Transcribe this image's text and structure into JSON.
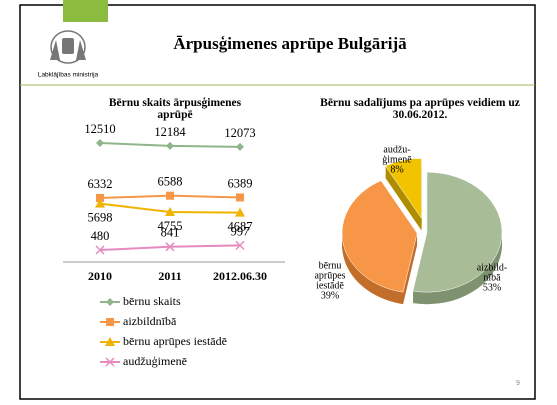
{
  "title": "Ārpusģimenes aprūpe Bulgārijā",
  "logo_text": "Labklājības ministrija",
  "page_number": "9",
  "chart_data": [
    {
      "type": "line",
      "title": "Bērnu skaits ārpusģimenes aprūpē",
      "categories": [
        "2010",
        "2011",
        "2012.06.30"
      ],
      "series": [
        {
          "name": "bērnu skaits",
          "color": "#8fb58a",
          "marker": "diamond",
          "values": [
            12510,
            12184,
            12073
          ]
        },
        {
          "name": "aizbildnībā",
          "color": "#f79646",
          "marker": "square",
          "values": [
            6332,
            6588,
            6389
          ]
        },
        {
          "name": "bērnu aprūpes iestādē",
          "color": "#f0b400",
          "marker": "triangle",
          "values": [
            5698,
            4755,
            4687
          ]
        },
        {
          "name": "audžuģimenē",
          "color": "#e58bbf",
          "marker": "x",
          "values": [
            480,
            841,
            997
          ]
        }
      ],
      "legend": "bottom"
    },
    {
      "type": "pie",
      "title": "Bērnu sadalījums pa aprūpes veidiem uz 30.06.2012.",
      "labels": [
        [
          "aizbild-",
          "nībā"
        ],
        [
          "bērnu",
          "aprūpes",
          "iestādē"
        ],
        [
          "audžu-",
          "ģimenē"
        ]
      ],
      "values": [
        53,
        39,
        8
      ],
      "value_labels": [
        "53%",
        "39%",
        "8%"
      ],
      "colors": [
        "#a9bc98",
        "#f79646",
        "#f2c300"
      ],
      "side_colors": [
        "#7e9270",
        "#c26e2a",
        "#b08d00"
      ]
    }
  ]
}
